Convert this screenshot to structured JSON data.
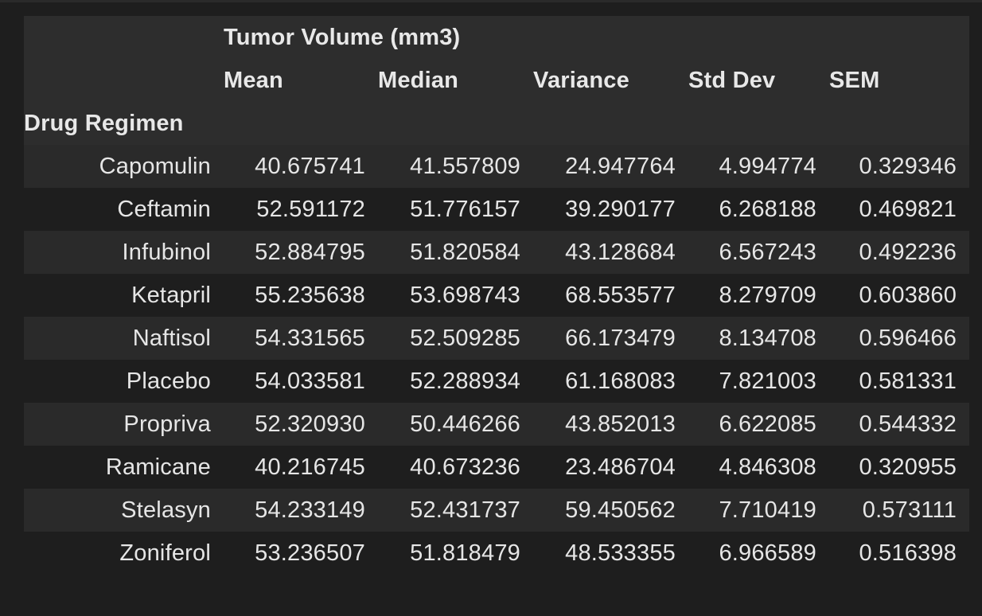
{
  "table": {
    "group_header": "Tumor Volume (mm3)",
    "columns": [
      "Mean",
      "Median",
      "Variance",
      "Std Dev",
      "SEM"
    ],
    "index_name": "Drug Regimen",
    "rows": [
      {
        "label": "Capomulin",
        "values": [
          "40.675741",
          "41.557809",
          "24.947764",
          "4.994774",
          "0.329346"
        ]
      },
      {
        "label": "Ceftamin",
        "values": [
          "52.591172",
          "51.776157",
          "39.290177",
          "6.268188",
          "0.469821"
        ]
      },
      {
        "label": "Infubinol",
        "values": [
          "52.884795",
          "51.820584",
          "43.128684",
          "6.567243",
          "0.492236"
        ]
      },
      {
        "label": "Ketapril",
        "values": [
          "55.235638",
          "53.698743",
          "68.553577",
          "8.279709",
          "0.603860"
        ]
      },
      {
        "label": "Naftisol",
        "values": [
          "54.331565",
          "52.509285",
          "66.173479",
          "8.134708",
          "0.596466"
        ]
      },
      {
        "label": "Placebo",
        "values": [
          "54.033581",
          "52.288934",
          "61.168083",
          "7.821003",
          "0.581331"
        ]
      },
      {
        "label": "Propriva",
        "values": [
          "52.320930",
          "50.446266",
          "43.852013",
          "6.622085",
          "0.544332"
        ]
      },
      {
        "label": "Ramicane",
        "values": [
          "40.216745",
          "40.673236",
          "23.486704",
          "4.846308",
          "0.320955"
        ]
      },
      {
        "label": "Stelasyn",
        "values": [
          "54.233149",
          "52.431737",
          "59.450562",
          "7.710419",
          "0.573111"
        ]
      },
      {
        "label": "Zoniferol",
        "values": [
          "53.236507",
          "51.818479",
          "48.533355",
          "6.966589",
          "0.516398"
        ]
      }
    ]
  }
}
